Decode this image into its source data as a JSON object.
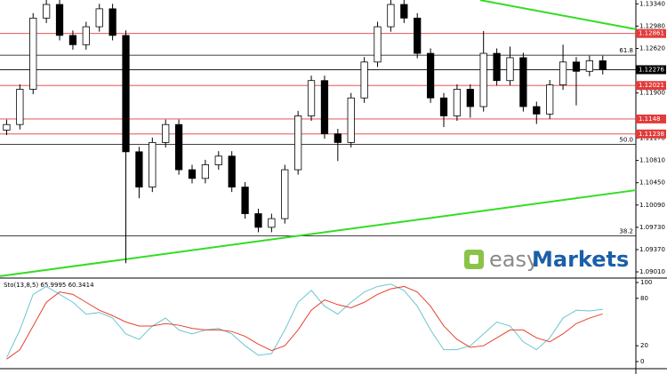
{
  "chart_data": [
    {
      "type": "candlestick",
      "xlim": [
        -0.5,
        47.5
      ],
      "ylim": [
        1.0891,
        1.13402
      ],
      "open": [
        1.113,
        1.1139,
        1.1196,
        1.1311,
        1.1333,
        1.1283,
        1.1268,
        1.1297,
        1.1326,
        1.1283,
        1.1095,
        1.1038,
        1.111,
        1.1139,
        1.1066,
        1.1052,
        1.1074,
        1.1088,
        1.1038,
        1.0995,
        1.0973,
        1.0987,
        1.1066,
        1.1153,
        1.121,
        1.1124,
        1.111,
        1.1182,
        1.124,
        1.1297,
        1.1333,
        1.1311,
        1.1254,
        1.1182,
        1.1153,
        1.1196,
        1.1168,
        1.1254,
        1.121,
        1.1247,
        1.1168,
        1.1156,
        1.1203,
        1.124,
        1.1225,
        1.1242
      ],
      "high": [
        1.1147,
        1.1204,
        1.1319,
        1.1341,
        1.1341,
        1.1291,
        1.1305,
        1.1334,
        1.1334,
        1.1291,
        1.1103,
        1.1118,
        1.1147,
        1.1147,
        1.1074,
        1.1082,
        1.1096,
        1.1096,
        1.1046,
        1.1003,
        1.0995,
        1.1074,
        1.1161,
        1.1218,
        1.1218,
        1.1132,
        1.119,
        1.1248,
        1.1305,
        1.1341,
        1.1341,
        1.1319,
        1.1262,
        1.119,
        1.1204,
        1.1204,
        1.129,
        1.1262,
        1.1265,
        1.1255,
        1.1176,
        1.1211,
        1.1268,
        1.1248,
        1.125,
        1.125
      ],
      "low": [
        1.1122,
        1.1131,
        1.1188,
        1.1303,
        1.1275,
        1.126,
        1.126,
        1.1289,
        1.1275,
        1.0915,
        1.102,
        1.103,
        1.1102,
        1.1058,
        1.1044,
        1.1044,
        1.1066,
        1.103,
        1.0987,
        1.0965,
        1.0965,
        1.0979,
        1.1058,
        1.1145,
        1.1116,
        1.108,
        1.1102,
        1.1174,
        1.1232,
        1.1289,
        1.1303,
        1.1246,
        1.1174,
        1.1135,
        1.1145,
        1.115,
        1.116,
        1.1202,
        1.1202,
        1.116,
        1.114,
        1.1148,
        1.1195,
        1.117,
        1.1217,
        1.122
      ],
      "close": [
        1.1139,
        1.1196,
        1.1311,
        1.1333,
        1.1283,
        1.1268,
        1.1297,
        1.1326,
        1.1283,
        1.1095,
        1.1038,
        1.111,
        1.1139,
        1.1066,
        1.1052,
        1.1074,
        1.1088,
        1.1038,
        1.0995,
        1.0973,
        1.0987,
        1.1066,
        1.1153,
        1.121,
        1.1124,
        1.111,
        1.1182,
        1.124,
        1.1297,
        1.1333,
        1.1311,
        1.1254,
        1.1182,
        1.1153,
        1.1196,
        1.1168,
        1.1254,
        1.121,
        1.1247,
        1.1168,
        1.1156,
        1.1203,
        1.124,
        1.1225,
        1.1242,
        1.12276
      ],
      "yticks": [
        {
          "value": 1.0901,
          "label": "1.09010"
        },
        {
          "value": 1.0937,
          "label": "1.09370"
        },
        {
          "value": 1.0973,
          "label": "1.09730"
        },
        {
          "value": 1.1009,
          "label": "1.10090"
        },
        {
          "value": 1.1045,
          "label": "1.10450"
        },
        {
          "value": 1.1081,
          "label": "1.10810"
        },
        {
          "value": 1.1117,
          "label": "1.11170"
        },
        {
          "value": 1.119,
          "label": "1.11900"
        },
        {
          "value": 1.1262,
          "label": "1.12620"
        },
        {
          "value": 1.1298,
          "label": "1.12980"
        },
        {
          "value": 1.1334,
          "label": "1.13340"
        }
      ],
      "levels": [
        {
          "price": 1.12861,
          "color": "#e23b3b"
        },
        {
          "price": 1.12276,
          "color": "#000000"
        },
        {
          "price": 1.12021,
          "color": "#e23b3b"
        },
        {
          "price": 1.1148,
          "color": "#e23b3b"
        },
        {
          "price": 1.11238,
          "color": "#e23b3b"
        }
      ],
      "fib_levels": [
        {
          "price": 1.1251,
          "label": "61.8"
        },
        {
          "price": 1.1107,
          "label": "50.0"
        },
        {
          "price": 1.0959,
          "label": "38.2"
        }
      ],
      "trendlines": [
        {
          "x": [
            35.75,
            47.5
          ],
          "y": [
            1.134,
            1.1293
          ],
          "color": "#33dd22"
        },
        {
          "x": [
            -0.5,
            47.5
          ],
          "y": [
            1.0894,
            1.1033
          ],
          "color": "#33dd22"
        }
      ],
      "brand": [
        "easy",
        "Markets"
      ]
    },
    {
      "type": "line",
      "title": "Sto(13,8,5) 65.9995 60.3414",
      "ylim": [
        0,
        100
      ],
      "yticks": [
        0,
        20,
        80,
        100
      ],
      "series": [
        {
          "name": "main",
          "color": "#6cc6d0",
          "values": [
            5,
            40,
            85,
            95,
            85,
            75,
            60,
            62,
            55,
            35,
            28,
            45,
            55,
            40,
            35,
            40,
            42,
            35,
            20,
            8,
            10,
            40,
            75,
            90,
            70,
            60,
            75,
            88,
            95,
            98,
            90,
            70,
            40,
            15,
            15,
            20,
            35,
            50,
            45,
            25,
            15,
            30,
            55,
            65,
            64,
            65.9995
          ]
        },
        {
          "name": "signal",
          "color": "#e8412f",
          "values": [
            3,
            15,
            45,
            75,
            88,
            85,
            75,
            65,
            58,
            50,
            45,
            45,
            48,
            46,
            42,
            40,
            40,
            38,
            32,
            22,
            14,
            20,
            40,
            65,
            78,
            72,
            68,
            75,
            85,
            92,
            95,
            88,
            70,
            45,
            28,
            18,
            20,
            30,
            40,
            40,
            30,
            25,
            35,
            48,
            55,
            60.3414
          ]
        }
      ]
    }
  ]
}
